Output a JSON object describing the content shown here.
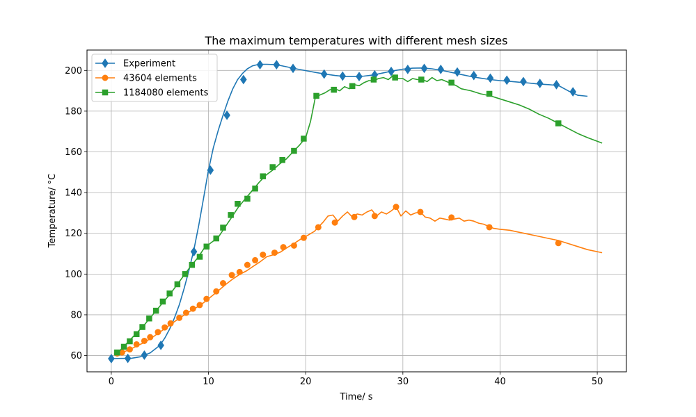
{
  "chart_data": {
    "type": "line",
    "title": "The maximum temperatures with different mesh sizes",
    "xlabel": "Time/ s",
    "ylabel": "Temperature/ °C",
    "xlim": [
      -2.5,
      53
    ],
    "ylim": [
      52,
      210
    ],
    "xticks": [
      0,
      10,
      20,
      30,
      40,
      50
    ],
    "yticks": [
      60,
      80,
      100,
      120,
      140,
      160,
      180,
      200
    ],
    "grid": true,
    "legend_position": "top-left",
    "series": [
      {
        "name": "Experiment",
        "color": "#1f77b4",
        "marker": "diamond",
        "x": [
          0,
          1,
          2,
          3,
          4,
          5,
          5.5,
          6,
          6.5,
          7,
          7.5,
          8,
          8.5,
          9,
          9.5,
          10,
          10.5,
          11,
          11.5,
          12,
          12.5,
          13,
          13.5,
          14,
          14.5,
          15,
          15.5,
          16,
          17,
          18,
          19,
          20,
          21,
          22,
          23,
          24,
          25,
          26,
          27,
          28,
          29,
          30,
          31,
          32,
          33,
          34,
          35,
          36,
          37,
          38,
          39,
          40,
          41,
          42,
          43,
          44,
          45,
          46,
          47,
          48,
          49
        ],
        "y": [
          58.5,
          58.6,
          58.6,
          59.4,
          61.3,
          65.0,
          68.5,
          73.0,
          78.5,
          85.0,
          93.0,
          102.0,
          112.0,
          124.0,
          137.5,
          151.0,
          162.0,
          170.5,
          178.0,
          185.0,
          191.0,
          195.5,
          198.5,
          200.8,
          202.2,
          202.8,
          203.0,
          203.0,
          202.8,
          201.8,
          200.8,
          199.9,
          199.0,
          198.2,
          197.5,
          197.0,
          197.0,
          197.2,
          197.8,
          198.8,
          199.8,
          200.6,
          201.1,
          201.2,
          200.8,
          200.0,
          199.0,
          198.0,
          197.0,
          196.2,
          195.5,
          195.0,
          194.6,
          194.2,
          193.8,
          193.3,
          193.0,
          192.6,
          190.0,
          187.8,
          187.3
        ],
        "marker_points": [
          [
            0,
            58.5
          ],
          [
            1.7,
            58.6
          ],
          [
            3.4,
            60.2
          ],
          [
            5.1,
            65.0
          ],
          [
            8.5,
            111.0
          ],
          [
            10.2,
            151.0
          ],
          [
            11.9,
            178.0
          ],
          [
            13.6,
            195.5
          ],
          [
            15.3,
            202.8
          ],
          [
            17.0,
            202.8
          ],
          [
            18.7,
            201.0
          ],
          [
            21.9,
            198.2
          ],
          [
            23.8,
            197.2
          ],
          [
            25.5,
            197.0
          ],
          [
            27.1,
            197.8
          ],
          [
            28.8,
            199.5
          ],
          [
            30.5,
            200.5
          ],
          [
            32.2,
            201.0
          ],
          [
            33.9,
            200.5
          ],
          [
            35.6,
            199.2
          ],
          [
            37.3,
            197.5
          ],
          [
            39.0,
            196.2
          ],
          [
            40.7,
            195.2
          ],
          [
            42.4,
            194.5
          ],
          [
            44.1,
            193.6
          ],
          [
            45.8,
            193.0
          ],
          [
            47.5,
            189.5
          ]
        ]
      },
      {
        "name": "43604 elements",
        "color": "#ff7f0e",
        "marker": "circle",
        "x": [
          0.6,
          1.3,
          2.0,
          2.7,
          3.4,
          4.1,
          4.8,
          5.5,
          6.2,
          6.9,
          7.6,
          8.3,
          9.0,
          9.7,
          10.4,
          11.1,
          11.8,
          12.5,
          13.2,
          13.9,
          14.6,
          15.3,
          16.0,
          16.7,
          17.4,
          18.1,
          18.8,
          19.5,
          20.2,
          20.9,
          21.3,
          21.8,
          22.3,
          22.8,
          23.3,
          23.8,
          24.3,
          24.8,
          25.3,
          25.8,
          26.3,
          26.8,
          27.3,
          27.8,
          28.3,
          28.8,
          29.3,
          29.8,
          30.3,
          30.8,
          31.3,
          31.8,
          32.3,
          32.8,
          33.3,
          33.8,
          34.3,
          34.8,
          35.3,
          35.8,
          36.3,
          36.8,
          37.3,
          37.8,
          38.3,
          38.8,
          39.3,
          40.0,
          41.0,
          42.0,
          43.0,
          44.0,
          45.0,
          46.0,
          47.0,
          48.0,
          49.0,
          50.5
        ],
        "y": [
          61.0,
          61.8,
          63.2,
          64.8,
          66.5,
          68.5,
          70.8,
          73.2,
          75.6,
          78.0,
          80.2,
          82.3,
          84.2,
          86.7,
          89.4,
          92.2,
          95.0,
          97.6,
          99.8,
          101.5,
          103.8,
          106.0,
          108.5,
          109.5,
          110.8,
          113.0,
          115.0,
          117.2,
          119.0,
          121.0,
          123.0,
          125.5,
          128.5,
          129.0,
          126.0,
          128.5,
          130.5,
          128.0,
          129.5,
          129.0,
          130.5,
          131.5,
          128.5,
          130.5,
          129.5,
          131.0,
          133.0,
          128.5,
          131.0,
          129.0,
          130.0,
          130.5,
          128.0,
          127.5,
          126.0,
          127.5,
          127.0,
          126.5,
          127.0,
          127.5,
          126.0,
          126.5,
          126.0,
          125.0,
          124.5,
          123.5,
          122.5,
          122.0,
          121.5,
          120.5,
          119.5,
          118.5,
          117.5,
          116.5,
          115.0,
          113.5,
          112.0,
          110.5
        ],
        "marker_points": [
          [
            0.6,
            61.0
          ],
          [
            1.1,
            61.5
          ],
          [
            1.9,
            63.0
          ],
          [
            2.6,
            65.5
          ],
          [
            3.4,
            67.2
          ],
          [
            4.0,
            69.0
          ],
          [
            4.8,
            71.5
          ],
          [
            5.5,
            73.8
          ],
          [
            6.1,
            75.8
          ],
          [
            7.0,
            78.5
          ],
          [
            7.7,
            81.0
          ],
          [
            8.4,
            83.0
          ],
          [
            9.1,
            84.8
          ],
          [
            9.8,
            87.8
          ],
          [
            10.8,
            91.5
          ],
          [
            11.5,
            95.5
          ],
          [
            12.4,
            99.5
          ],
          [
            13.2,
            101.0
          ],
          [
            14.0,
            104.5
          ],
          [
            14.8,
            106.8
          ],
          [
            15.6,
            109.5
          ],
          [
            16.8,
            110.5
          ],
          [
            17.7,
            113.2
          ],
          [
            18.8,
            114.0
          ],
          [
            19.8,
            117.8
          ],
          [
            21.3,
            123.0
          ],
          [
            23.0,
            125.3
          ],
          [
            25.0,
            128.0
          ],
          [
            27.1,
            128.5
          ],
          [
            29.3,
            133.0
          ],
          [
            31.8,
            130.5
          ],
          [
            35.0,
            127.8
          ],
          [
            38.9,
            123.0
          ],
          [
            46.0,
            115.2
          ]
        ]
      },
      {
        "name": "1184080 elements",
        "color": "#2ca02c",
        "marker": "square",
        "x": [
          0.6,
          1.2,
          1.9,
          2.6,
          3.3,
          4.0,
          4.7,
          5.4,
          6.1,
          6.8,
          7.5,
          8.2,
          8.9,
          9.6,
          10.3,
          11.0,
          11.7,
          12.4,
          13.1,
          13.8,
          14.5,
          15.2,
          15.9,
          16.6,
          17.3,
          18.0,
          18.7,
          19.4,
          20.0,
          20.5,
          21.0,
          21.5,
          22.0,
          22.5,
          23.0,
          23.5,
          24.0,
          24.5,
          25.0,
          25.5,
          26.0,
          26.5,
          27.0,
          27.5,
          28.0,
          28.5,
          29.0,
          29.5,
          30.0,
          30.5,
          31.0,
          31.5,
          32.0,
          32.5,
          33.0,
          33.5,
          34.0,
          34.5,
          35.0,
          35.5,
          36.0,
          37.0,
          38.0,
          39.0,
          40.0,
          41.0,
          42.0,
          43.0,
          44.0,
          45.0,
          46.0,
          47.0,
          48.0,
          49.0,
          50.5
        ],
        "y": [
          61.0,
          64.0,
          67.5,
          71.0,
          74.5,
          78.5,
          82.5,
          86.5,
          90.5,
          95.0,
          99.5,
          104.0,
          108.0,
          113.0,
          115.5,
          118.0,
          123.0,
          128.0,
          133.0,
          137.0,
          141.0,
          145.0,
          148.5,
          151.0,
          154.0,
          156.5,
          160.0,
          163.5,
          167.0,
          175.0,
          187.0,
          188.0,
          189.0,
          190.5,
          191.0,
          190.0,
          192.0,
          191.0,
          193.0,
          192.5,
          194.0,
          195.0,
          195.0,
          196.0,
          196.5,
          195.5,
          197.5,
          196.0,
          196.0,
          194.5,
          196.0,
          195.5,
          195.5,
          194.5,
          196.5,
          195.0,
          195.5,
          194.5,
          193.5,
          192.5,
          191.0,
          190.0,
          188.5,
          187.5,
          186.0,
          184.5,
          183.0,
          181.0,
          178.5,
          176.5,
          174.0,
          171.5,
          169.0,
          167.0,
          164.3
        ],
        "marker_points": [
          [
            0.6,
            61.5
          ],
          [
            1.3,
            64.3
          ],
          [
            1.9,
            67.0
          ],
          [
            2.6,
            70.5
          ],
          [
            3.2,
            74.0
          ],
          [
            3.9,
            78.2
          ],
          [
            4.6,
            82.0
          ],
          [
            5.3,
            86.5
          ],
          [
            6.0,
            90.5
          ],
          [
            6.8,
            95.0
          ],
          [
            7.6,
            100.0
          ],
          [
            8.3,
            104.5
          ],
          [
            9.1,
            108.5
          ],
          [
            9.8,
            113.5
          ],
          [
            10.8,
            117.5
          ],
          [
            11.5,
            122.8
          ],
          [
            12.3,
            129.0
          ],
          [
            13.0,
            134.5
          ],
          [
            14.0,
            137.0
          ],
          [
            14.8,
            142.0
          ],
          [
            15.6,
            148.0
          ],
          [
            16.6,
            152.5
          ],
          [
            17.6,
            156.0
          ],
          [
            18.8,
            160.5
          ],
          [
            19.8,
            166.5
          ],
          [
            21.1,
            187.5
          ],
          [
            22.9,
            190.5
          ],
          [
            24.8,
            192.3
          ],
          [
            27.0,
            195.5
          ],
          [
            29.2,
            196.5
          ],
          [
            31.9,
            195.5
          ],
          [
            35.0,
            194.0
          ],
          [
            38.9,
            188.5
          ],
          [
            46.0,
            174.0
          ]
        ]
      }
    ]
  }
}
